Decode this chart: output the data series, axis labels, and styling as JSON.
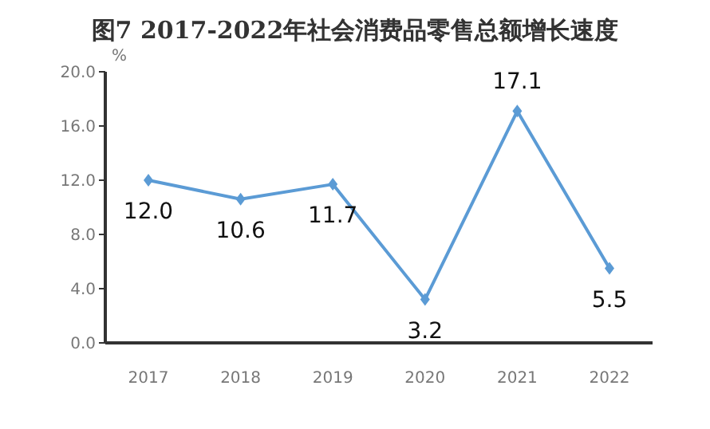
{
  "chart_data": {
    "type": "line",
    "title": "图7 2017-2022年社会消费品零售总额增长速度",
    "ylabel": "%",
    "categories": [
      "2017",
      "2018",
      "2019",
      "2020",
      "2021",
      "2022"
    ],
    "series": [
      {
        "color": "#5b9bd5",
        "values": [
          12.0,
          10.6,
          11.7,
          3.2,
          17.1,
          5.5
        ],
        "value_labels": [
          "12.0",
          "10.6",
          "11.7",
          "3.2",
          "17.1",
          "5.5"
        ]
      }
    ],
    "ylim": [
      0,
      20
    ],
    "yticks": [
      {
        "value": 0,
        "label": "0.0"
      },
      {
        "value": 4,
        "label": "4.0"
      },
      {
        "value": 8,
        "label": "8.0"
      },
      {
        "value": 12,
        "label": "12.0"
      },
      {
        "value": 16,
        "label": "16.0"
      },
      {
        "value": 20,
        "label": "20.0"
      }
    ],
    "marker": "diamond",
    "grid": false,
    "legend": false
  }
}
